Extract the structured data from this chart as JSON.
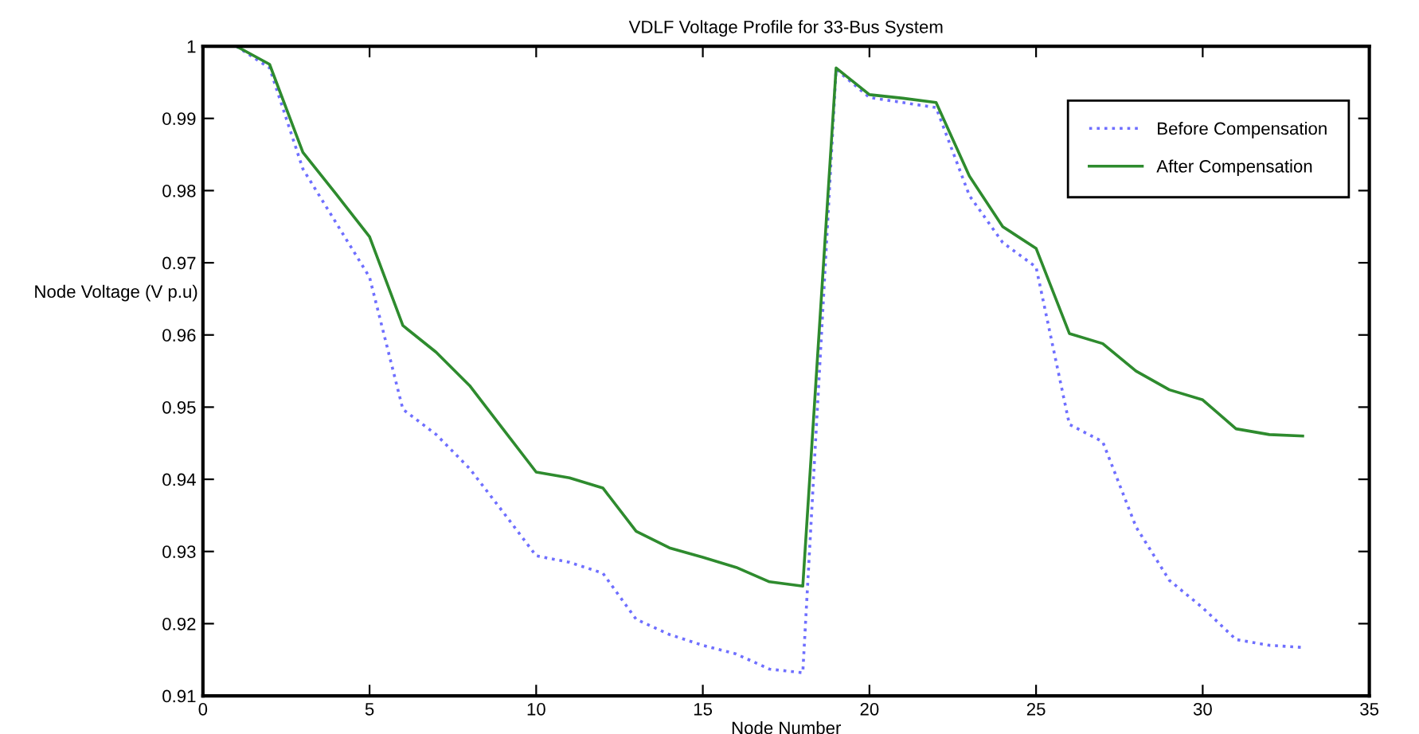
{
  "chart_data": {
    "type": "line",
    "title": "VDLF Voltage Profile for 33-Bus System",
    "xlabel": "Node Number",
    "ylabel": "Node Voltage (V p.u)",
    "x": [
      1,
      2,
      3,
      4,
      5,
      6,
      7,
      8,
      9,
      10,
      11,
      12,
      13,
      14,
      15,
      16,
      17,
      18,
      19,
      20,
      21,
      22,
      23,
      24,
      25,
      26,
      27,
      28,
      29,
      30,
      31,
      32,
      33
    ],
    "series": [
      {
        "name": "Before Compensation",
        "color": "#6f6fff",
        "line_style": "dotted",
        "values": [
          1.0,
          0.997,
          0.983,
          0.9755,
          0.968,
          0.9497,
          0.9462,
          0.9415,
          0.9355,
          0.9294,
          0.9285,
          0.927,
          0.9206,
          0.9185,
          0.917,
          0.9158,
          0.9137,
          0.9132,
          0.9968,
          0.9929,
          0.9922,
          0.9915,
          0.9793,
          0.9728,
          0.9694,
          0.9476,
          0.9452,
          0.9334,
          0.926,
          0.9222,
          0.9178,
          0.917,
          0.9167
        ]
      },
      {
        "name": "After Compensation",
        "color": "#2e8b2e",
        "line_style": "solid",
        "values": [
          1.0,
          0.9975,
          0.9853,
          0.9795,
          0.9736,
          0.9613,
          0.9576,
          0.953,
          0.947,
          0.941,
          0.9402,
          0.9388,
          0.9328,
          0.9305,
          0.9292,
          0.9278,
          0.9258,
          0.9252,
          0.997,
          0.9933,
          0.9928,
          0.9922,
          0.982,
          0.975,
          0.972,
          0.9602,
          0.9588,
          0.955,
          0.9524,
          0.951,
          0.947,
          0.9462,
          0.946
        ]
      }
    ],
    "xlim": [
      0,
      35
    ],
    "xticks": [
      0,
      5,
      10,
      15,
      20,
      25,
      30,
      35
    ],
    "ylim": [
      0.91,
      1
    ],
    "yticks": [
      0.91,
      0.92,
      0.93,
      0.94,
      0.95,
      0.96,
      0.97,
      0.98,
      0.99,
      1
    ],
    "grid": false,
    "legend": "top right",
    "marker": "none"
  }
}
